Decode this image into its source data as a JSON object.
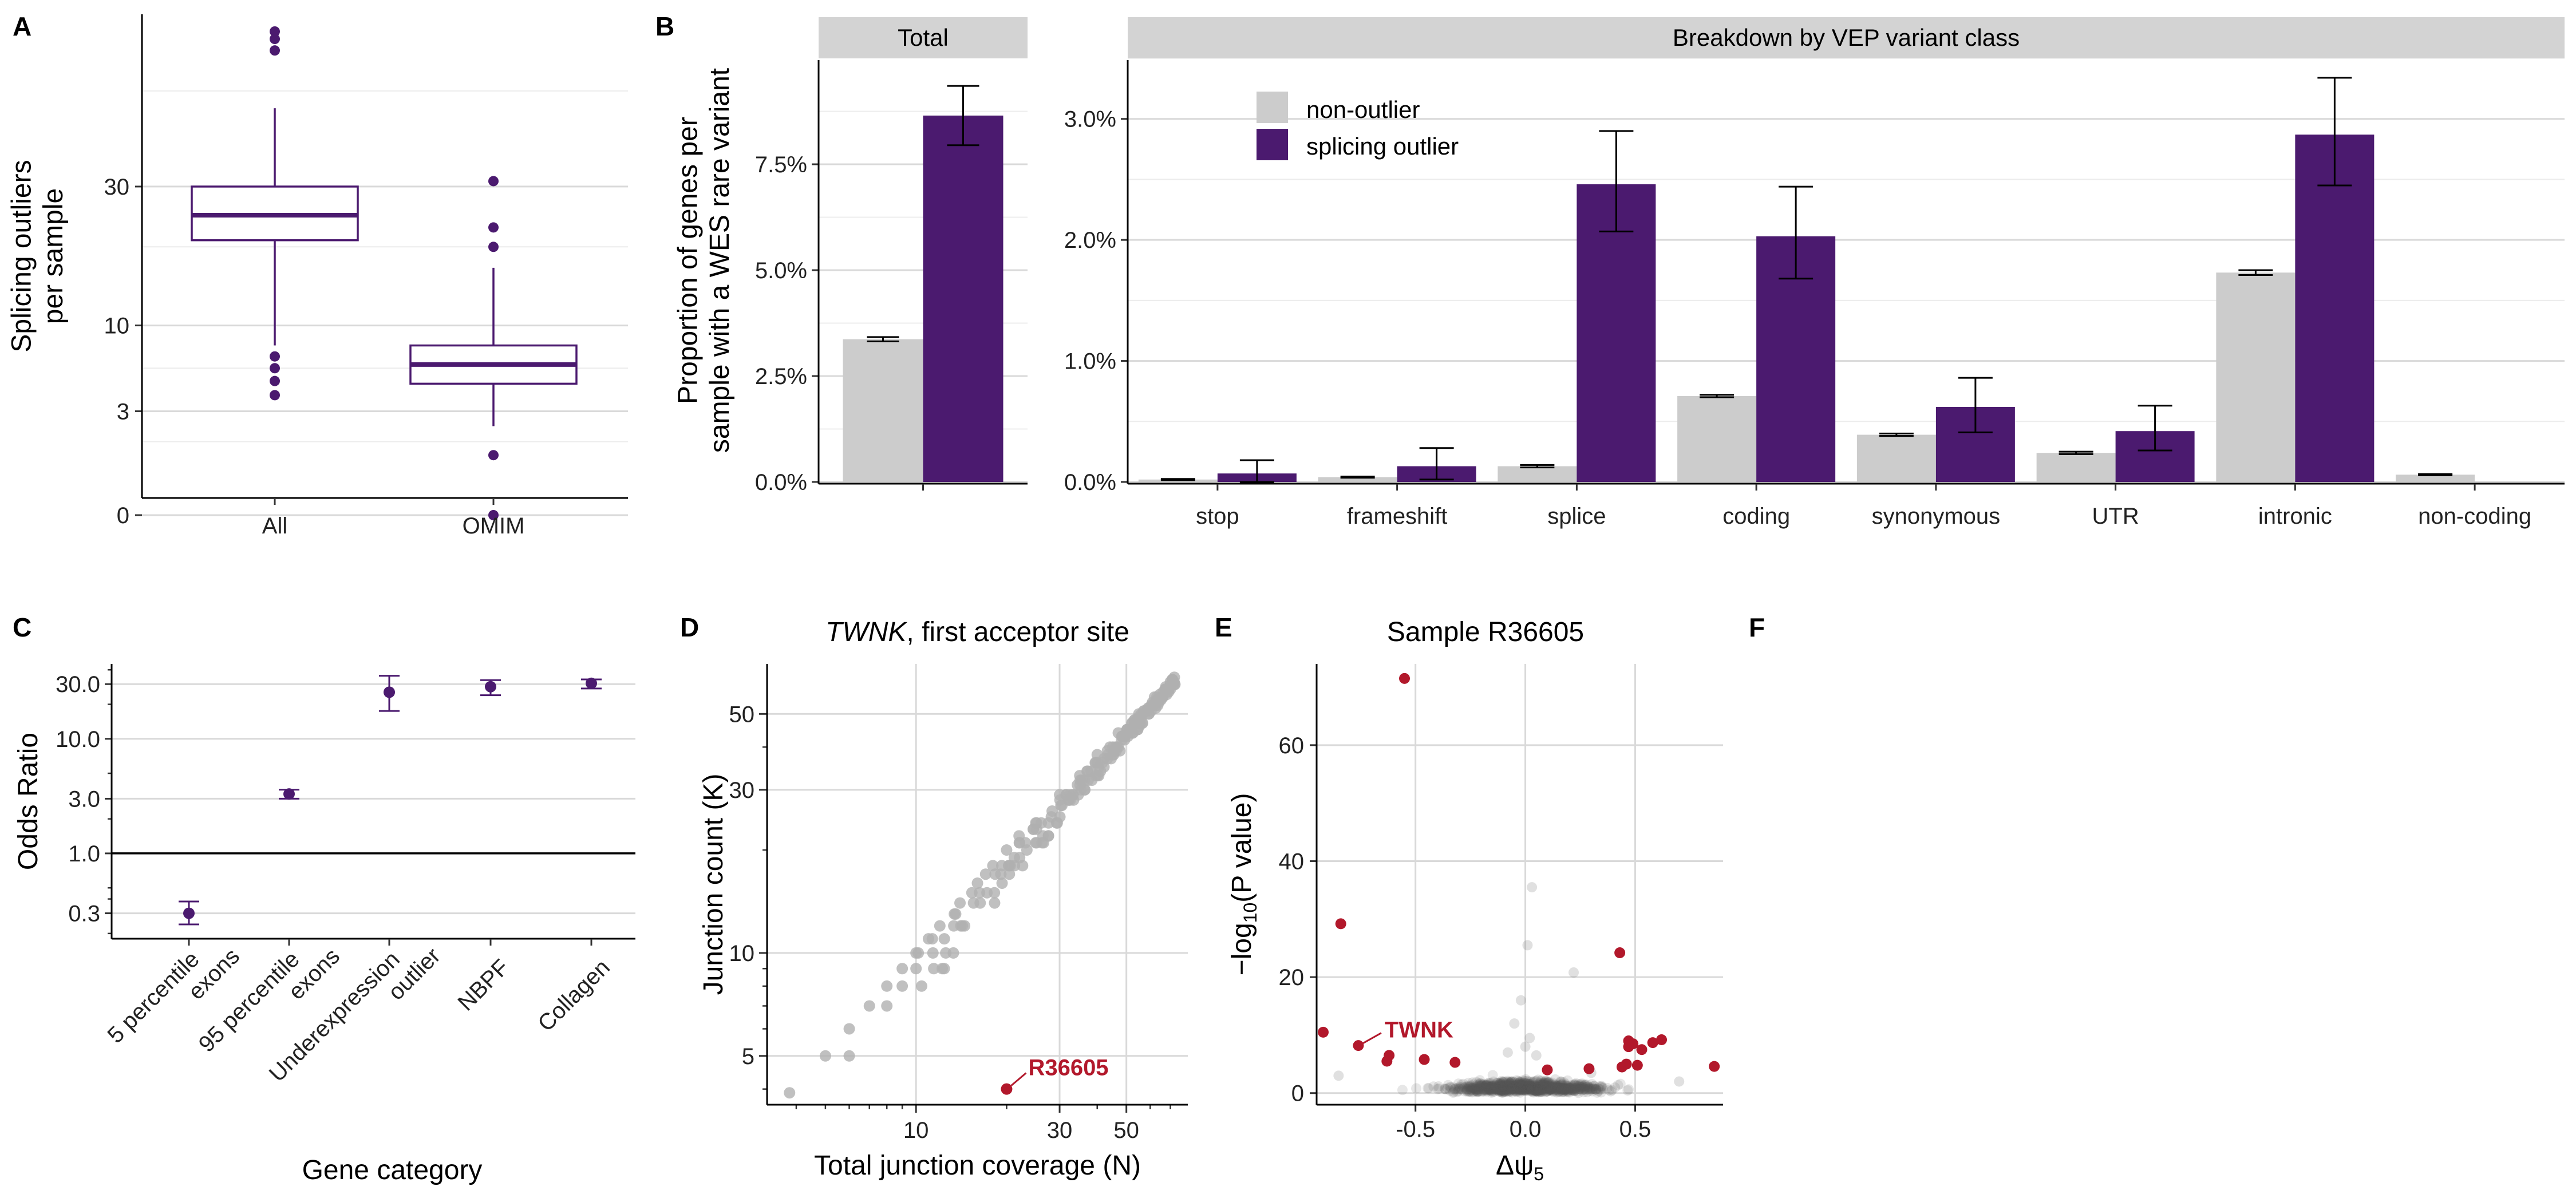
{
  "panels": {
    "A": "A",
    "B": "B",
    "C": "C",
    "D": "D",
    "E": "E",
    "F": "F"
  },
  "chart_data": [
    {
      "id": "A",
      "type": "box",
      "ylabel_lines": [
        "Splicing outliers",
        "per sample"
      ],
      "categories": [
        "All",
        "OMIM"
      ],
      "y_scale": "sqrt",
      "y_ticks": [
        0,
        3,
        10,
        30
      ],
      "y_tick_labels": [
        "0",
        "3",
        "10",
        "30"
      ],
      "boxes": [
        {
          "category": "All",
          "lower_whisker": 8,
          "q1": 21,
          "median": 25,
          "q3": 30,
          "upper_whisker": 46,
          "outliers": [
            4,
            5,
            6,
            7,
            60,
            63,
            65
          ]
        },
        {
          "category": "OMIM",
          "lower_whisker": 2.2,
          "q1": 4.8,
          "median": 6.3,
          "q3": 8,
          "upper_whisker": 17,
          "outliers": [
            0,
            1,
            20,
            23,
            31
          ]
        }
      ],
      "color": "#4b1a6f"
    },
    {
      "id": "B",
      "type": "bar",
      "ylabel_lines": [
        "Proportion of genes per",
        "sample with a WES rare variant"
      ],
      "legend": [
        "non-outlier",
        "splicing outlier"
      ],
      "colors": {
        "non-outlier": "#cccccc",
        "splicing outlier": "#4b1a6f"
      },
      "total": {
        "strip": "Total",
        "ylim": [
          0,
          10
        ],
        "y_ticks": [
          0,
          2.5,
          5,
          7.5
        ],
        "y_tick_labels": [
          "0.0%",
          "2.5%",
          "5.0%",
          "7.5%"
        ],
        "non_outlier": {
          "value": 3.37,
          "lo": 3.32,
          "hi": 3.42
        },
        "splicing_outlier": {
          "value": 8.65,
          "lo": 7.95,
          "hi": 9.35
        }
      },
      "breakdown": {
        "strip": "Breakdown by VEP variant class",
        "ylim": [
          0,
          3.5
        ],
        "y_ticks": [
          0,
          1,
          2,
          3
        ],
        "y_tick_labels": [
          "0.0%",
          "1.0%",
          "2.0%",
          "3.0%"
        ],
        "categories": [
          "stop",
          "frameshift",
          "splice",
          "coding",
          "synonymous",
          "UTR",
          "intronic",
          "non-coding"
        ],
        "series": [
          {
            "name": "non-outlier",
            "values": [
              0.02,
              0.04,
              0.13,
              0.71,
              0.39,
              0.24,
              1.73,
              0.06
            ],
            "lo": [
              0.015,
              0.035,
              0.12,
              0.7,
              0.38,
              0.23,
              1.71,
              0.055
            ],
            "hi": [
              0.025,
              0.045,
              0.14,
              0.72,
              0.4,
              0.25,
              1.75,
              0.065
            ]
          },
          {
            "name": "splicing outlier",
            "values": [
              0.07,
              0.13,
              2.46,
              2.03,
              0.62,
              0.42,
              2.87,
              0.0
            ],
            "lo": [
              0.0,
              0.02,
              2.07,
              1.68,
              0.41,
              0.26,
              2.45,
              0.0
            ],
            "hi": [
              0.18,
              0.28,
              2.9,
              2.44,
              0.86,
              0.63,
              3.34,
              0.0
            ]
          }
        ]
      }
    },
    {
      "id": "C",
      "type": "errorbar",
      "ylabel": "Odds Ratio",
      "xlabel": "Gene category",
      "y_scale": "log",
      "y_ticks": [
        0.3,
        1,
        3,
        10,
        30
      ],
      "y_tick_labels": [
        "0.3",
        "1.0",
        "3.0",
        "10.0",
        "30.0"
      ],
      "categories": [
        [
          "5 percentile",
          "exons"
        ],
        [
          "95 percentile",
          "exons"
        ],
        [
          "Underexpression",
          "outlier"
        ],
        [
          "NBPF"
        ],
        [
          "Collagen"
        ]
      ],
      "values": [
        0.3,
        3.3,
        25.5,
        28.5,
        30.5
      ],
      "lo": [
        0.24,
        3.0,
        17.5,
        24.0,
        27.5
      ],
      "hi": [
        0.38,
        3.6,
        35.5,
        32.5,
        33.0
      ],
      "reference_line": 1,
      "color": "#4b1a6f"
    },
    {
      "id": "D",
      "type": "scatter",
      "title_italic": "TWNK",
      "title_rest": ", first acceptor site",
      "xlabel": "Total junction coverage (N)",
      "ylabel": "Junction count (K)",
      "x_scale": "log",
      "y_scale": "log",
      "x_ticks": [
        10,
        30,
        50
      ],
      "y_ticks": [
        5,
        10,
        30,
        50
      ],
      "x_tick_labels": [
        "10",
        "30",
        "50"
      ],
      "y_tick_labels": [
        "5",
        "10",
        "30",
        "50"
      ],
      "highlight": {
        "label": "R36605",
        "x": 20,
        "y": 4
      },
      "point_color": "#b0b0b0",
      "highlight_color": "#b2182b"
    },
    {
      "id": "E",
      "type": "scatter",
      "title": "Sample R36605",
      "xlabel": "Δψ",
      "xlabel_sub": "5",
      "ylabel_pre": "−log",
      "ylabel_sub": "10",
      "ylabel_post": "(P value)",
      "xlim": [
        -0.95,
        0.9
      ],
      "ylim": [
        -2,
        74
      ],
      "x_ticks": [
        -0.5,
        0,
        0.5
      ],
      "x_tick_labels": [
        "-0.5",
        "0.0",
        "0.5"
      ],
      "y_ticks": [
        0,
        20,
        40,
        60
      ],
      "y_tick_labels": [
        "0",
        "20",
        "40",
        "60"
      ],
      "significant_points": [
        [
          -0.55,
          71.5
        ],
        [
          -0.92,
          10.5
        ],
        [
          -0.84,
          29.2
        ],
        [
          -0.63,
          5.5
        ],
        [
          -0.62,
          6.5
        ],
        [
          -0.46,
          5.8
        ],
        [
          -0.32,
          5.3
        ],
        [
          -0.76,
          8.2
        ],
        [
          0.1,
          4
        ],
        [
          0.29,
          4.2
        ],
        [
          0.43,
          24.2
        ],
        [
          0.44,
          4.5
        ],
        [
          0.46,
          5
        ],
        [
          0.47,
          8
        ],
        [
          0.47,
          9
        ],
        [
          0.49,
          8.5
        ],
        [
          0.51,
          4.8
        ],
        [
          0.53,
          7.5
        ],
        [
          0.58,
          8.7
        ],
        [
          0.62,
          9.2
        ],
        [
          0.86,
          4.6
        ]
      ],
      "annotation": {
        "label": "TWNK",
        "x": -0.76,
        "y": 8.2
      },
      "point_color": "#555555",
      "highlight_color": "#b2182b"
    }
  ]
}
